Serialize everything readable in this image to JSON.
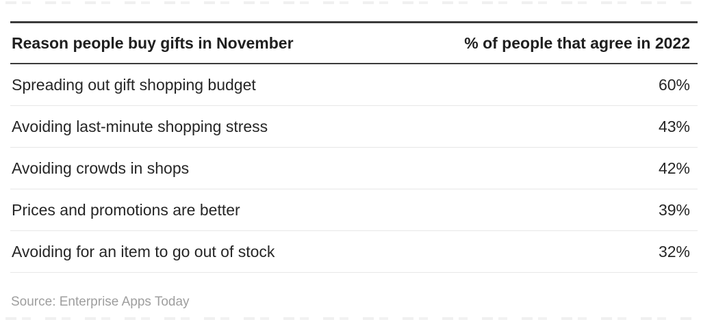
{
  "chart_data": {
    "type": "table",
    "title": "Reason people buy gifts in November",
    "columns": [
      "Reason people buy gifts in November",
      "% of people that agree in 2022"
    ],
    "categories": [
      "Spreading out gift shopping budget",
      "Avoiding last-minute shopping stress",
      "Avoiding crowds in shops",
      "Prices and promotions are better",
      "Avoiding for an item to go out of stock"
    ],
    "values": [
      60,
      43,
      42,
      39,
      32
    ],
    "value_unit": "percent",
    "rows": [
      {
        "label": "Spreading out gift shopping budget",
        "value": 60,
        "display": "60%"
      },
      {
        "label": "Avoiding last-minute shopping stress",
        "value": 43,
        "display": "43%"
      },
      {
        "label": "Avoiding crowds in shops",
        "value": 42,
        "display": "42%"
      },
      {
        "label": "Prices and promotions are better",
        "value": 39,
        "display": "39%"
      },
      {
        "label": "Avoiding for an item to go out of stock",
        "value": 32,
        "display": "32%"
      }
    ],
    "legend_position": "none",
    "grid": "horizontal-separators-only"
  },
  "footer": {
    "source_text": "Source: Enterprise Apps Today"
  },
  "colors": {
    "background": "#ffffff",
    "rule_dark": "#3a3a3a",
    "row_separator": "#e7e7e7",
    "header_text": "#1f1f1f",
    "row_text": "#262626",
    "source_text": "#9e9e9e",
    "edge_dashes": "#f0f0f0"
  }
}
